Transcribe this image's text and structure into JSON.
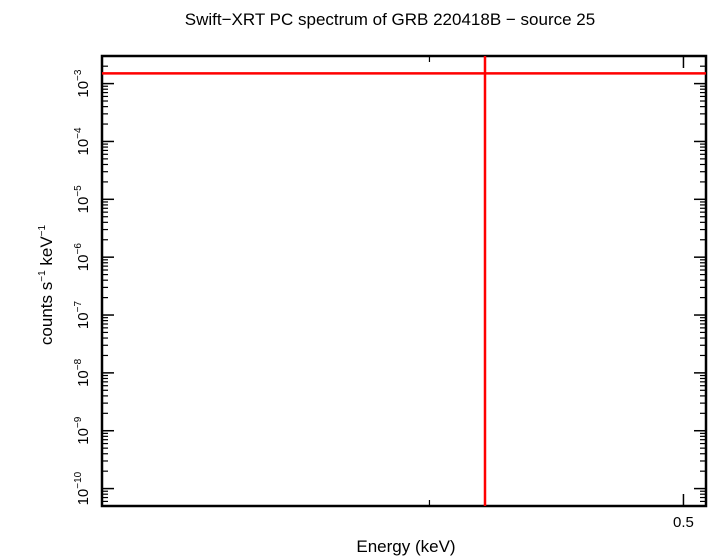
{
  "chart_data": {
    "type": "line",
    "title": "Swift−XRT PC spectrum of GRB 220418B − source 25",
    "xlabel": "Energy (keV)",
    "ylabel": {
      "base": "counts s",
      "sup1": "−1",
      "mid": " keV",
      "sup2": "−1"
    },
    "x_scale": "log",
    "y_scale": "log",
    "xlim": [
      0.3,
      0.51
    ],
    "ylim": [
      5e-11,
      0.003
    ],
    "x_ticks": [
      {
        "value": 0.5,
        "label": "0.5"
      }
    ],
    "y_ticks": [
      {
        "value": 1e-10,
        "base": "10",
        "exp": "−10"
      },
      {
        "value": 1e-09,
        "base": "10",
        "exp": "−9"
      },
      {
        "value": 1e-08,
        "base": "10",
        "exp": "−8"
      },
      {
        "value": 1e-07,
        "base": "10",
        "exp": "−7"
      },
      {
        "value": 1e-06,
        "base": "10",
        "exp": "−6"
      },
      {
        "value": 1e-05,
        "base": "10",
        "exp": "−5"
      },
      {
        "value": 0.0001,
        "base": "10",
        "exp": "−4"
      },
      {
        "value": 0.001,
        "base": "10",
        "exp": "−3"
      }
    ],
    "data_point": {
      "x": 0.42,
      "y": 0.0015,
      "x_err": [
        0.3,
        0.51
      ]
    },
    "series_color": "#ff0000",
    "axis_color": "#000000"
  }
}
